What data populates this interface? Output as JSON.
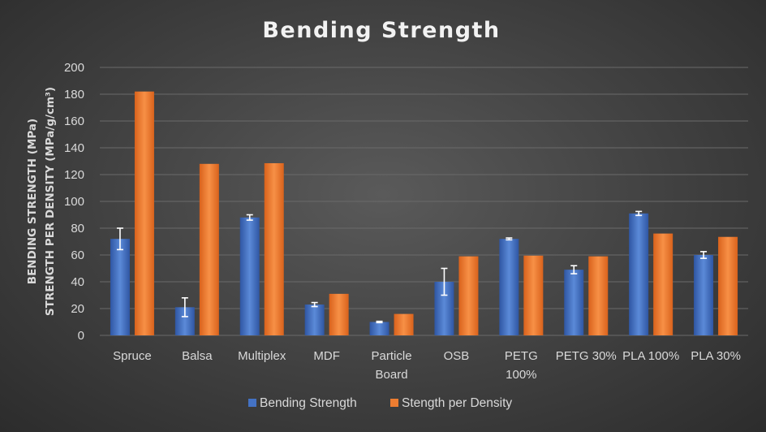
{
  "chart_data": {
    "type": "bar",
    "title": "Bending Strength",
    "ylabel_lines": [
      "BENDING STRENGTH (MPa)",
      "STRENGTH PER DENSITY (MPa/g/cm³)"
    ],
    "xlabel": "",
    "ylim": [
      0,
      200
    ],
    "yticks": [
      0,
      20,
      40,
      60,
      80,
      100,
      120,
      140,
      160,
      180,
      200
    ],
    "grid": true,
    "legend_position": "bottom",
    "categories": [
      [
        "Spruce"
      ],
      [
        "Balsa"
      ],
      [
        "Multiplex"
      ],
      [
        "MDF"
      ],
      [
        "Particle",
        "Board"
      ],
      [
        "OSB"
      ],
      [
        "PETG",
        "100%"
      ],
      [
        "PETG 30%"
      ],
      [
        "PLA 100%"
      ],
      [
        "PLA 30%"
      ]
    ],
    "series": [
      {
        "name": "Bending Strength",
        "color": "#4472c4",
        "values": [
          72,
          21,
          88,
          23,
          10,
          40,
          72,
          49,
          91,
          60
        ],
        "error": [
          8,
          7,
          2,
          1.5,
          0.5,
          10,
          0.7,
          3,
          1.5,
          2.5
        ]
      },
      {
        "name": "Stength per Density",
        "color": "#ed7d31",
        "values": [
          182,
          128,
          128.5,
          31,
          16,
          59,
          59.5,
          59,
          76,
          73.5
        ]
      }
    ]
  }
}
